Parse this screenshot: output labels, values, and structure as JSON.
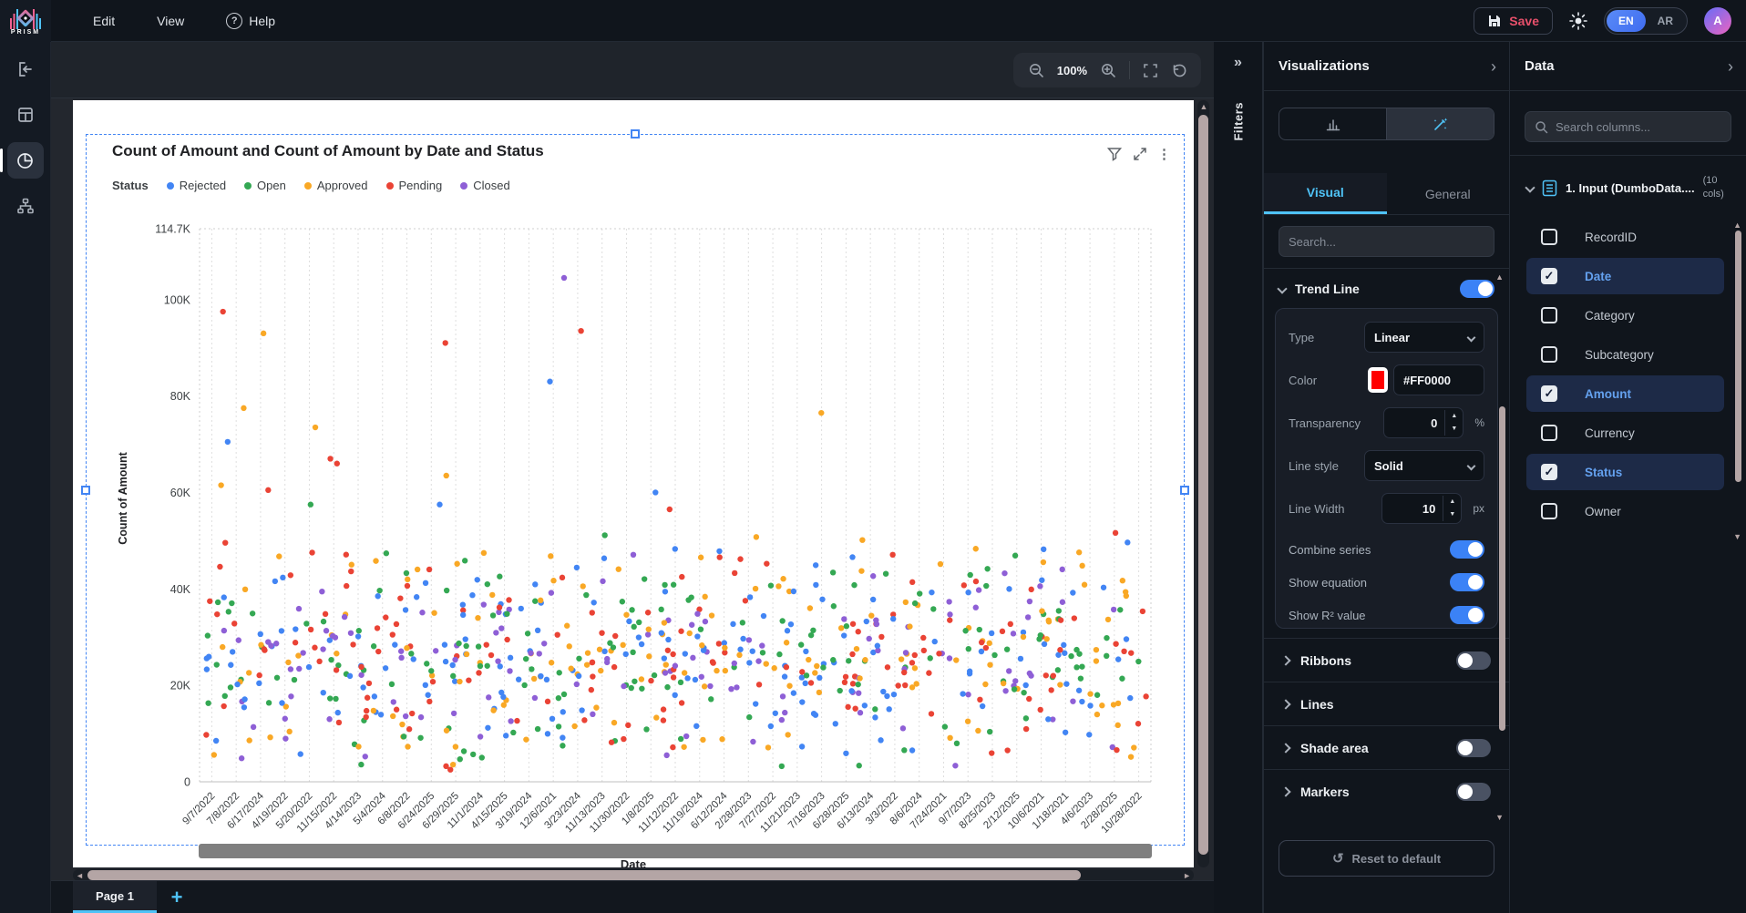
{
  "topbar": {
    "logo": "PRISM",
    "menu": [
      "Edit",
      "View",
      "Help"
    ],
    "save_label": "Save",
    "lang_en": "EN",
    "lang_ar": "AR",
    "avatar_initial": "A"
  },
  "icons": {
    "help_glyph": "?",
    "kebab_glyph": "⋮",
    "reset_glyph": "↺",
    "filters_collapse_glyph": "»",
    "add_page_glyph": "+",
    "scroll_up": "▲",
    "scroll_down": "▼",
    "scroll_left": "◄",
    "scroll_right": "►",
    "spin_up": "▲",
    "spin_down": "▼"
  },
  "canvas": {
    "zoom_level": "100%",
    "page_tab": "Page 1"
  },
  "filters": {
    "label": "Filters"
  },
  "visualizations": {
    "title": "Visualizations",
    "tab_visual": "Visual",
    "tab_general": "General",
    "search_placeholder": "Search...",
    "trend_line": {
      "title": "Trend Line",
      "enabled": true,
      "type_label": "Type",
      "type_value": "Linear",
      "color_label": "Color",
      "color_value": "#FF0000",
      "color_hex": "#FF0000",
      "transparency_label": "Transparency",
      "transparency_value": "0",
      "transparency_unit": "%",
      "line_style_label": "Line style",
      "line_style_value": "Solid",
      "line_width_label": "Line Width",
      "line_width_value": "10",
      "line_width_unit": "px",
      "combine_series_label": "Combine series",
      "combine_series_on": true,
      "show_equation_label": "Show equation",
      "show_equation_on": true,
      "show_r2_label": "Show R² value",
      "show_r2_on": true
    },
    "sections": [
      {
        "label": "Ribbons",
        "has_toggle": true,
        "on": false
      },
      {
        "label": "Lines",
        "has_toggle": false,
        "on": false
      },
      {
        "label": "Shade area",
        "has_toggle": true,
        "on": false
      },
      {
        "label": "Markers",
        "has_toggle": true,
        "on": false
      }
    ],
    "reset_button": "Reset to default"
  },
  "data_panel": {
    "title": "Data",
    "search_placeholder": "Search columns...",
    "dataset_name": "1. Input (DumboData....",
    "dataset_cols": "(10 cols)",
    "columns": [
      {
        "name": "RecordID",
        "checked": false
      },
      {
        "name": "Date",
        "checked": true
      },
      {
        "name": "Category",
        "checked": false
      },
      {
        "name": "Subcategory",
        "checked": false
      },
      {
        "name": "Amount",
        "checked": true
      },
      {
        "name": "Currency",
        "checked": false
      },
      {
        "name": "Status",
        "checked": true
      },
      {
        "name": "Owner",
        "checked": false
      }
    ]
  },
  "chart_data": {
    "type": "scatter",
    "title": "Count of Amount and Count of Amount by Date and Status",
    "legend_title": "Status",
    "series": [
      {
        "name": "Rejected",
        "color": "#4285F4"
      },
      {
        "name": "Open",
        "color": "#34A853"
      },
      {
        "name": "Approved",
        "color": "#F9A825"
      },
      {
        "name": "Pending",
        "color": "#EA4335"
      },
      {
        "name": "Closed",
        "color": "#8E5FD6"
      }
    ],
    "ylabel": "Count of Amount",
    "xlabel": "Date",
    "y_ticks": [
      "114.7K",
      "100K",
      "80K",
      "60K",
      "40K",
      "20K",
      "0"
    ],
    "y_tick_values": [
      114.7,
      100,
      80,
      60,
      40,
      20,
      0
    ],
    "y_max": 114.7,
    "grid": "vertical-dotted",
    "legend_position": "top",
    "x_categories": [
      "9/7/2022",
      "7/8/2022",
      "6/17/2024",
      "4/19/2022",
      "5/20/2022",
      "11/15/2022",
      "4/14/2023",
      "5/4/2024",
      "6/8/2022",
      "6/24/2025",
      "6/29/2025",
      "11/1/2024",
      "4/15/2025",
      "3/19/2024",
      "12/6/2021",
      "3/23/2024",
      "11/13/2023",
      "11/30/2022",
      "1/8/2025",
      "11/12/2022",
      "11/19/2024",
      "6/12/2024",
      "2/28/2023",
      "7/27/2022",
      "11/21/2023",
      "7/16/2023",
      "6/28/2025",
      "6/13/2024",
      "3/3/2022",
      "8/6/2024",
      "7/24/2021",
      "9/7/2023",
      "8/25/2023",
      "2/12/2025",
      "10/6/2021",
      "1/18/2021",
      "4/6/2023",
      "2/28/2025",
      "10/28/2022"
    ],
    "outliers": [
      {
        "x": 0.02,
        "v": 97.5,
        "s": 3
      },
      {
        "x": 0.025,
        "v": 70.5,
        "s": 0
      },
      {
        "x": 0.018,
        "v": 61.5,
        "s": 2
      },
      {
        "x": 0.042,
        "v": 77.5,
        "s": 2
      },
      {
        "x": 0.063,
        "v": 93.0,
        "s": 2
      },
      {
        "x": 0.068,
        "v": 60.5,
        "s": 3
      },
      {
        "x": 0.113,
        "v": 57.5,
        "s": 1
      },
      {
        "x": 0.118,
        "v": 73.5,
        "s": 2
      },
      {
        "x": 0.134,
        "v": 67.0,
        "s": 3
      },
      {
        "x": 0.141,
        "v": 66.0,
        "s": 3
      },
      {
        "x": 0.25,
        "v": 57.5,
        "s": 0
      },
      {
        "x": 0.256,
        "v": 91.0,
        "s": 3
      },
      {
        "x": 0.257,
        "v": 63.5,
        "s": 2
      },
      {
        "x": 0.367,
        "v": 83.0,
        "s": 0
      },
      {
        "x": 0.382,
        "v": 104.5,
        "s": 4
      },
      {
        "x": 0.4,
        "v": 93.5,
        "s": 3
      },
      {
        "x": 0.479,
        "v": 60.0,
        "s": 0
      },
      {
        "x": 0.494,
        "v": 56.5,
        "s": 3
      },
      {
        "x": 0.655,
        "v": 76.5,
        "s": 2
      }
    ],
    "cloud": {
      "count": 760,
      "seed": 1337,
      "v_min": 1.2,
      "v_max": 52.5
    }
  }
}
